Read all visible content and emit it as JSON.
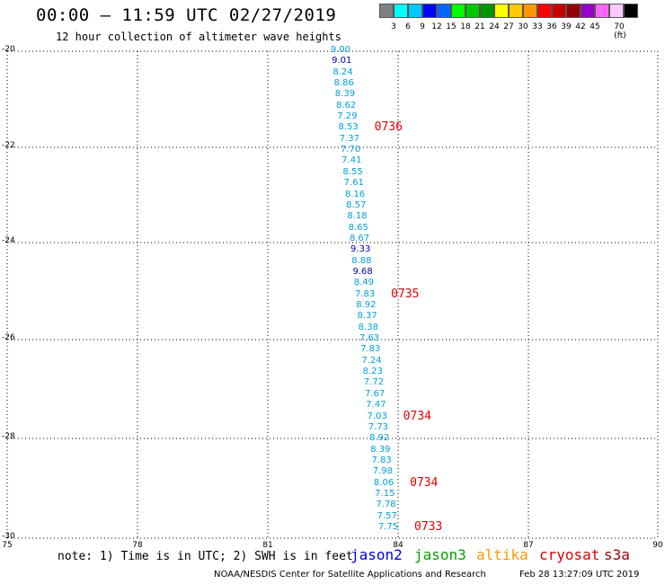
{
  "header": {
    "title": "00:00 – 11:59 UTC 02/27/2019",
    "subtitle": "12 hour collection of altimeter wave heights"
  },
  "legend": {
    "colors": [
      "#808080",
      "#00ffff",
      "#00c8ff",
      "#0000ff",
      "#0066ff",
      "#00ff00",
      "#00c800",
      "#009600",
      "#ffff00",
      "#ffc800",
      "#ff9600",
      "#ff0000",
      "#c80000",
      "#960000",
      "#9600c8",
      "#ff64ff",
      "#ffc8ff",
      "#000000"
    ],
    "labels": [
      "3",
      "6",
      "9",
      "12",
      "15",
      "18",
      "21",
      "24",
      "27",
      "30",
      "33",
      "36",
      "39",
      "42",
      "45",
      "70 (ft)"
    ]
  },
  "axes": {
    "y_labels": [
      "-20",
      "-22",
      "-24",
      "-26",
      "-28",
      "-30"
    ],
    "x_labels": [
      "75",
      "78",
      "81",
      "84",
      "87",
      "90"
    ]
  },
  "wave_heights": [
    {
      "text": "9.00",
      "color": "#00a0dc"
    },
    {
      "text": "9.01",
      "color": "#0000b4"
    },
    {
      "text": "8.24",
      "color": "#00a0dc"
    },
    {
      "text": "8.86",
      "color": "#00a0dc"
    },
    {
      "text": "8.39",
      "color": "#00a0dc"
    },
    {
      "text": "8.62",
      "color": "#00a0dc"
    },
    {
      "text": "7.29",
      "color": "#00a0dc"
    },
    {
      "text": "8.53",
      "color": "#00a0dc"
    },
    {
      "text": "7.37",
      "color": "#00a0dc"
    },
    {
      "text": "7.70",
      "color": "#00a0dc"
    },
    {
      "text": "7.41",
      "color": "#00a0dc"
    },
    {
      "text": "8.55",
      "color": "#00a0dc"
    },
    {
      "text": "7.61",
      "color": "#00a0dc"
    },
    {
      "text": "8.16",
      "color": "#00a0dc"
    },
    {
      "text": "8.57",
      "color": "#00a0dc"
    },
    {
      "text": "8.18",
      "color": "#00a0dc"
    },
    {
      "text": "8.65",
      "color": "#00a0dc"
    },
    {
      "text": "8.67",
      "color": "#00a0dc"
    },
    {
      "text": "9.33",
      "color": "#0000b4"
    },
    {
      "text": "8.88",
      "color": "#00a0dc"
    },
    {
      "text": "9.68",
      "color": "#0000b4"
    },
    {
      "text": "8.49",
      "color": "#00a0dc"
    },
    {
      "text": "7.83",
      "color": "#00a0dc"
    },
    {
      "text": "8.92",
      "color": "#00a0dc"
    },
    {
      "text": "8.37",
      "color": "#00a0dc"
    },
    {
      "text": "8.38",
      "color": "#00a0dc"
    },
    {
      "text": "7.63",
      "color": "#00a0dc"
    },
    {
      "text": "7.83",
      "color": "#00a0dc"
    },
    {
      "text": "7.24",
      "color": "#00a0dc"
    },
    {
      "text": "8.23",
      "color": "#00a0dc"
    },
    {
      "text": "7.72",
      "color": "#00a0dc"
    },
    {
      "text": "7.67",
      "color": "#00a0dc"
    },
    {
      "text": "7.47",
      "color": "#00a0dc"
    },
    {
      "text": "7.03",
      "color": "#00a0dc"
    },
    {
      "text": "7.73",
      "color": "#00a0dc"
    },
    {
      "text": "8.92",
      "color": "#00a0dc"
    },
    {
      "text": "8.39",
      "color": "#00a0dc"
    },
    {
      "text": "7.83",
      "color": "#00a0dc"
    },
    {
      "text": "7.98",
      "color": "#00a0dc"
    },
    {
      "text": "8.06",
      "color": "#00a0dc"
    },
    {
      "text": "7.15",
      "color": "#00a0dc"
    },
    {
      "text": "7.78",
      "color": "#00a0dc"
    },
    {
      "text": "7.57",
      "color": "#00a0dc"
    },
    {
      "text": "7.75",
      "color": "#00a0dc"
    }
  ],
  "pass_times": [
    {
      "text": "0736",
      "color": "#e00000"
    },
    {
      "text": "0735",
      "color": "#e00000"
    },
    {
      "text": "0734",
      "color": "#e00000"
    },
    {
      "text": "0734",
      "color": "#e00000"
    },
    {
      "text": "0733",
      "color": "#e00000"
    }
  ],
  "note": "note: 1) Time is in UTC; 2) SWH is in feet",
  "satellites": [
    {
      "name": "jason2",
      "color": "#0000dc"
    },
    {
      "name": "jason3",
      "color": "#00a000"
    },
    {
      "name": "altika",
      "color": "#ff9600"
    },
    {
      "name": "cryosat",
      "color": "#e00000"
    },
    {
      "name": "s3a",
      "color": "#960000"
    }
  ],
  "footer": {
    "credit": "NOAA/NESDIS Center for Satellite Applications and Research",
    "timestamp": "Feb 28 13:27:09 UTC 2019"
  }
}
